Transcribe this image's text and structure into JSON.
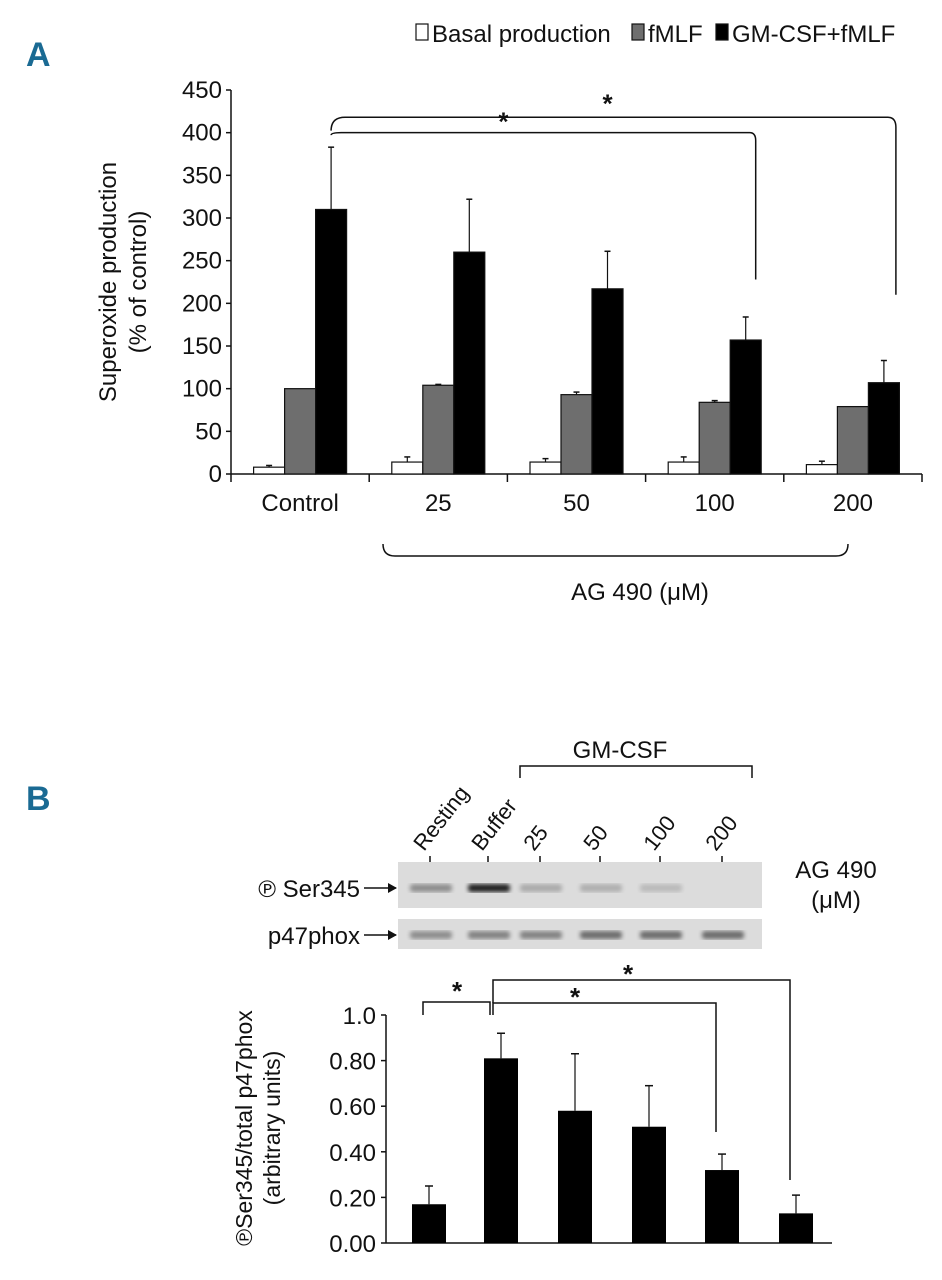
{
  "panel_labels": [
    "A",
    "B"
  ],
  "chart_data": [
    {
      "type": "bar",
      "panel": "A",
      "categories": [
        "Control",
        "25",
        "50",
        "100",
        "200"
      ],
      "xlabel": "AG 490 (μM)",
      "ylabel": [
        "Superoxide production",
        "(% of control)"
      ],
      "ylim": [
        0,
        450
      ],
      "yticks": [
        0,
        50,
        100,
        150,
        200,
        250,
        300,
        350,
        400,
        450
      ],
      "legend_position": "top-right",
      "series": [
        {
          "name": "Basal production",
          "color": "#ffffff",
          "values": [
            8,
            14,
            14,
            14,
            11
          ],
          "error_upper": [
            10,
            20,
            18,
            20,
            15
          ]
        },
        {
          "name": "fMLF",
          "color": "#6e6e6e",
          "values": [
            100,
            104,
            93,
            84,
            79
          ],
          "error_upper": [
            100,
            105,
            96,
            86,
            79
          ]
        },
        {
          "name": "GM-CSF+fMLF",
          "color": "#000000",
          "values": [
            310,
            260,
            217,
            157,
            107
          ],
          "error_upper": [
            383,
            322,
            261,
            184,
            133
          ]
        }
      ],
      "significance": [
        {
          "from": "Control",
          "to": "100",
          "label": "*"
        },
        {
          "from": "Control",
          "to": "200",
          "label": "*"
        }
      ]
    },
    {
      "type": "bar",
      "panel": "B",
      "categories": [
        "Resting",
        "Buffer",
        "25",
        "50",
        "100",
        "200"
      ],
      "group_label": "GM-CSF",
      "xlabel": [
        "AG 490",
        "(μM)"
      ],
      "ylabel": [
        "℗Ser345/total p47phox",
        "(arbitrary units)"
      ],
      "ylim": [
        0,
        1.0
      ],
      "yticks": [
        "0.00",
        "0.20",
        "0.40",
        "0.60",
        "0.80",
        "1.0"
      ],
      "color": "#000000",
      "values": [
        0.17,
        0.81,
        0.58,
        0.51,
        0.32,
        0.13
      ],
      "error_upper": [
        0.25,
        0.92,
        0.83,
        0.69,
        0.39,
        0.21
      ],
      "significance": [
        {
          "from": "Resting",
          "to": "Buffer",
          "label": "*"
        },
        {
          "from": "Buffer",
          "to": "100",
          "label": "*"
        },
        {
          "from": "Buffer",
          "to": "200",
          "label": "*"
        }
      ]
    }
  ],
  "blot": {
    "rows": [
      {
        "label": "℗ Ser345",
        "band_intensity": [
          0.35,
          0.85,
          0.22,
          0.2,
          0.15,
          0.0
        ]
      },
      {
        "label": "p47phox",
        "band_intensity": [
          0.35,
          0.4,
          0.4,
          0.5,
          0.5,
          0.5
        ]
      }
    ]
  }
}
